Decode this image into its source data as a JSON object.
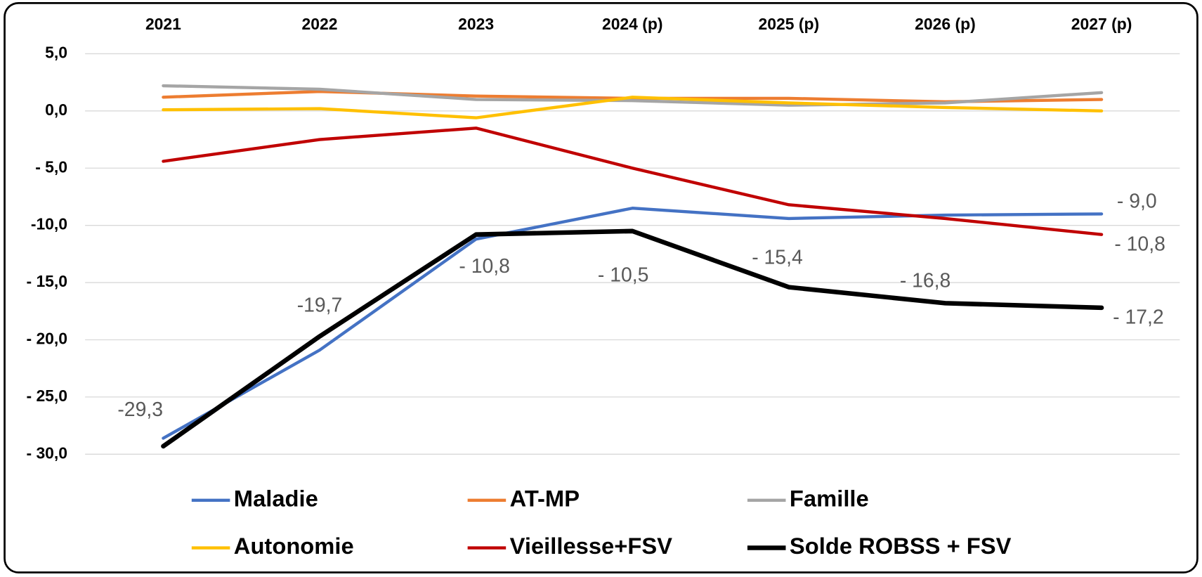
{
  "chart_data": {
    "type": "line",
    "categories": [
      "2021",
      "2022",
      "2023",
      "2024 (p)",
      "2025 (p)",
      "2026 (p)",
      "2027 (p)"
    ],
    "ylim": [
      -31,
      6
    ],
    "yticks": [
      {
        "value": 5,
        "label": "5,0"
      },
      {
        "value": 0,
        "label": "0,0"
      },
      {
        "value": -5,
        "label": "- 5,0"
      },
      {
        "value": -10,
        "label": "-10,0"
      },
      {
        "value": -15,
        "label": "- 15,0"
      },
      {
        "value": -20,
        "label": "- 20,0"
      },
      {
        "value": -25,
        "label": "- 25,0"
      },
      {
        "value": -30,
        "label": "- 30,0"
      }
    ],
    "grid": true,
    "legend": "bottom",
    "series": [
      {
        "name": "Maladie",
        "color": "#4472c4",
        "values": [
          -28.6,
          -20.9,
          -11.2,
          -8.5,
          -9.4,
          -9.1,
          -9.0
        ],
        "value_labels": [
          null,
          null,
          null,
          null,
          null,
          null,
          "- 9,0"
        ]
      },
      {
        "name": "AT-MP",
        "color": "#ed7d31",
        "values": [
          1.2,
          1.7,
          1.3,
          1.1,
          1.1,
          0.8,
          1.0
        ]
      },
      {
        "name": "Famille",
        "color": "#a5a5a5",
        "values": [
          2.2,
          1.9,
          1.0,
          0.9,
          0.5,
          0.7,
          1.6
        ]
      },
      {
        "name": "Autonomie",
        "color": "#ffc000",
        "values": [
          0.1,
          0.2,
          -0.6,
          1.2,
          0.7,
          0.3,
          0.0
        ]
      },
      {
        "name": "Vieillesse+FSV",
        "color": "#c00000",
        "values": [
          -4.4,
          -2.5,
          -1.5,
          -5.0,
          -8.2,
          -9.4,
          -10.8
        ],
        "value_labels": [
          null,
          null,
          null,
          null,
          null,
          null,
          "- 10,8"
        ]
      },
      {
        "name": "Solde ROBSS + FSV",
        "color": "#000000",
        "values": [
          -29.3,
          -19.7,
          -10.8,
          -10.5,
          -15.4,
          -16.8,
          -17.2
        ],
        "value_labels": [
          "-29,3",
          "-19,7",
          "- 10,8",
          "- 10,5",
          "- 15,4",
          "- 16,8",
          "- 17,2"
        ]
      }
    ]
  }
}
